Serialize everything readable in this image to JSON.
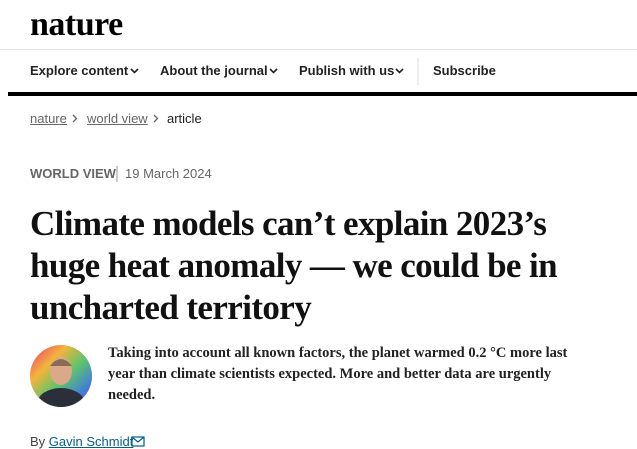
{
  "header": {
    "logo": "nature"
  },
  "nav": {
    "items": [
      "Explore content",
      "About the journal",
      "Publish with us",
      "Subscribe"
    ]
  },
  "breadcrumb": [
    "nature",
    "world view",
    "article"
  ],
  "article": {
    "type": "WORLD VIEW",
    "date": "19 March 2024",
    "title_lines": [
      "Climate models can’t explain 2023’s",
      "huge heat anomaly — we could be in",
      "uncharted territory"
    ],
    "standfirst_lines": [
      "Taking into account all known factors, the planet warmed 0.2 °C more last",
      "year than climate scientists expected. More and better data are urgently",
      "needed."
    ],
    "byline_prefix": "By",
    "author": "Gavin Schmidt"
  }
}
